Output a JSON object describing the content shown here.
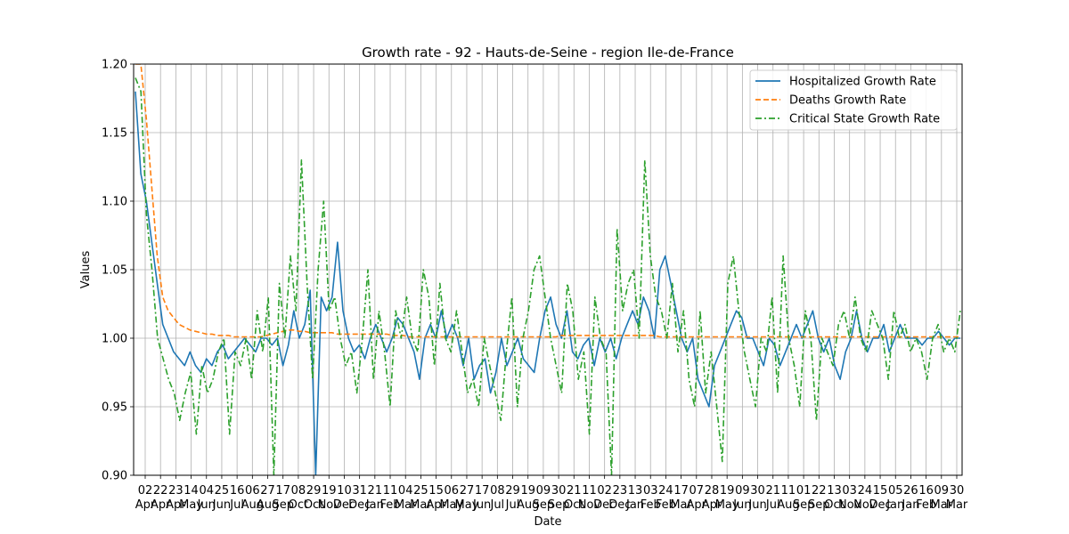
{
  "chart_data": {
    "type": "line",
    "title": "Growth rate - 92 - Hauts-de-Seine - region Ile-de-France",
    "xlabel": "Date",
    "ylabel": "Values",
    "ylim": [
      0.9,
      1.2
    ],
    "yticks": [
      "0.90",
      "0.95",
      "1.00",
      "1.05",
      "1.10",
      "1.15",
      "1.20"
    ],
    "x_tick_labels": [
      {
        "day": "02",
        "month": "Apr"
      },
      {
        "day": "22",
        "month": "Apr"
      },
      {
        "day": "23",
        "month": "Apr"
      },
      {
        "day": "14",
        "month": "May"
      },
      {
        "day": "04",
        "month": "Jun"
      },
      {
        "day": "25",
        "month": "Jun"
      },
      {
        "day": "16",
        "month": "Jul"
      },
      {
        "day": "06",
        "month": "Aug"
      },
      {
        "day": "27",
        "month": "Aug"
      },
      {
        "day": "17",
        "month": "Sep"
      },
      {
        "day": "08",
        "month": "Oct"
      },
      {
        "day": "29",
        "month": "Oct"
      },
      {
        "day": "19",
        "month": "Nov"
      },
      {
        "day": "10",
        "month": "Dec"
      },
      {
        "day": "31",
        "month": "Dec"
      },
      {
        "day": "21",
        "month": "Jan"
      },
      {
        "day": "11",
        "month": "Feb"
      },
      {
        "day": "04",
        "month": "Mar"
      },
      {
        "day": "25",
        "month": "Mar"
      },
      {
        "day": "15",
        "month": "Apr"
      },
      {
        "day": "06",
        "month": "May"
      },
      {
        "day": "27",
        "month": "May"
      },
      {
        "day": "17",
        "month": "Jun"
      },
      {
        "day": "08",
        "month": "Jul"
      },
      {
        "day": "29",
        "month": "Jul"
      },
      {
        "day": "19",
        "month": "Aug"
      },
      {
        "day": "09",
        "month": "Sep"
      },
      {
        "day": "30",
        "month": "Sep"
      },
      {
        "day": "21",
        "month": "Oct"
      },
      {
        "day": "11",
        "month": "Nov"
      },
      {
        "day": "02",
        "month": "Dec"
      },
      {
        "day": "23",
        "month": "Dec"
      },
      {
        "day": "13",
        "month": "Jan"
      },
      {
        "day": "03",
        "month": "Feb"
      },
      {
        "day": "24",
        "month": "Feb"
      },
      {
        "day": "17",
        "month": "Mar"
      },
      {
        "day": "07",
        "month": "Apr"
      },
      {
        "day": "28",
        "month": "Apr"
      },
      {
        "day": "19",
        "month": "May"
      },
      {
        "day": "09",
        "month": "Jun"
      },
      {
        "day": "30",
        "month": "Jun"
      },
      {
        "day": "21",
        "month": "Jul"
      },
      {
        "day": "11",
        "month": "Aug"
      },
      {
        "day": "01",
        "month": "Sep"
      },
      {
        "day": "22",
        "month": "Sep"
      },
      {
        "day": "13",
        "month": "Oct"
      },
      {
        "day": "03",
        "month": "Nov"
      },
      {
        "day": "24",
        "month": "Nov"
      },
      {
        "day": "15",
        "month": "Dec"
      },
      {
        "day": "05",
        "month": "Jan"
      },
      {
        "day": "26",
        "month": "Jan"
      },
      {
        "day": "16",
        "month": "Feb"
      },
      {
        "day": "09",
        "month": "Mar"
      },
      {
        "day": "30",
        "month": "Mar"
      }
    ],
    "grid": true,
    "legend_position": "top-right",
    "series": [
      {
        "name": "Hospitalized Growth Rate",
        "color": "#1f77b4",
        "style": "solid",
        "values": [
          1.18,
          1.12,
          1.1,
          1.07,
          1.04,
          1.01,
          1.0,
          0.99,
          0.985,
          0.98,
          0.99,
          0.98,
          0.975,
          0.985,
          0.98,
          0.99,
          0.995,
          0.985,
          0.99,
          0.995,
          1.0,
          0.995,
          0.99,
          1.0,
          1.0,
          0.995,
          1.0,
          0.98,
          0.995,
          1.02,
          1.0,
          1.01,
          1.035,
          0.9,
          1.03,
          1.02,
          1.03,
          1.07,
          1.02,
          1.0,
          0.99,
          0.995,
          0.985,
          1.0,
          1.01,
          1.0,
          0.99,
          1.0,
          1.015,
          1.01,
          1.0,
          0.99,
          0.97,
          1.0,
          1.01,
          1.0,
          1.02,
          1.0,
          1.01,
          1.0,
          0.98,
          1.0,
          0.97,
          0.98,
          0.985,
          0.96,
          0.975,
          1.0,
          0.98,
          0.99,
          1.0,
          0.985,
          0.98,
          0.975,
          1.0,
          1.02,
          1.03,
          1.01,
          1.0,
          1.02,
          0.99,
          0.985,
          0.995,
          1.0,
          0.98,
          1.0,
          0.99,
          1.0,
          0.985,
          1.0,
          1.01,
          1.02,
          1.01,
          1.03,
          1.02,
          1.0,
          1.05,
          1.06,
          1.04,
          1.02,
          1.0,
          0.99,
          1.0,
          0.97,
          0.96,
          0.95,
          0.98,
          0.99,
          1.0,
          1.01,
          1.02,
          1.015,
          1.0,
          1.0,
          0.99,
          0.98,
          1.0,
          0.995,
          0.98,
          0.99,
          1.0,
          1.01,
          1.0,
          1.01,
          1.02,
          1.0,
          0.99,
          1.0,
          0.98,
          0.97,
          0.99,
          1.0,
          1.02,
          1.0,
          0.99,
          1.0,
          1.0,
          1.01,
          0.99,
          1.0,
          1.01,
          1.0,
          1.0,
          1.0,
          0.995,
          1.0,
          1.0,
          1.005,
          1.0,
          0.995,
          1.0,
          1.0
        ]
      },
      {
        "name": "Deaths Growth Rate",
        "color": "#ff7f0e",
        "style": "dashed",
        "values": [
          1.2,
          1.2,
          1.16,
          1.11,
          1.06,
          1.03,
          1.02,
          1.015,
          1.01,
          1.008,
          1.006,
          1.005,
          1.004,
          1.003,
          1.003,
          1.002,
          1.002,
          1.002,
          1.001,
          1.001,
          1.001,
          1.001,
          1.001,
          1.001,
          1.002,
          1.003,
          1.004,
          1.005,
          1.006,
          1.006,
          1.005,
          1.005,
          1.004,
          1.004,
          1.004,
          1.004,
          1.004,
          1.003,
          1.003,
          1.003,
          1.003,
          1.003,
          1.003,
          1.003,
          1.003,
          1.003,
          1.003,
          1.002,
          1.002,
          1.002,
          1.001,
          1.001,
          1.001,
          1.001,
          1.001,
          1.001,
          1.001,
          1.001,
          1.001,
          1.001,
          1.001,
          1.001,
          1.001,
          1.001,
          1.001,
          1.001,
          1.001,
          1.001,
          1.001,
          1.001,
          1.001,
          1.001,
          1.001,
          1.001,
          1.001,
          1.001,
          1.001,
          1.001,
          1.002,
          1.002,
          1.002,
          1.002,
          1.002,
          1.002,
          1.002,
          1.002,
          1.002,
          1.002,
          1.002,
          1.002,
          1.002,
          1.002,
          1.002,
          1.002,
          1.002,
          1.002,
          1.001,
          1.001,
          1.001,
          1.001,
          1.001,
          1.001,
          1.001,
          1.001,
          1.001,
          1.001,
          1.001,
          1.001,
          1.001,
          1.001,
          1.001,
          1.001,
          1.001,
          1.001,
          1.001,
          1.001,
          1.001,
          1.001,
          1.001,
          1.001,
          1.001,
          1.001,
          1.001,
          1.001,
          1.001,
          1.001,
          1.001,
          1.001,
          1.001,
          1.001,
          1.001,
          1.001,
          1.001,
          1.001,
          1.001,
          1.001,
          1.001,
          1.001,
          1.001,
          1.001,
          1.001,
          1.001,
          1.001,
          1.001,
          1.001,
          1.001,
          1.001,
          1.001,
          1.001,
          1.001,
          1.001,
          1.001
        ]
      },
      {
        "name": "Critical State Growth Rate",
        "color": "#2ca02c",
        "style": "dashdot",
        "values": [
          1.19,
          1.18,
          1.09,
          1.05,
          1.0,
          0.985,
          0.97,
          0.96,
          0.94,
          0.96,
          0.975,
          0.93,
          0.98,
          0.96,
          0.97,
          0.99,
          1.0,
          0.93,
          0.99,
          0.98,
          1.0,
          0.97,
          1.02,
          0.99,
          1.03,
          0.9,
          1.04,
          1.0,
          1.06,
          1.02,
          1.13,
          1.04,
          0.97,
          1.05,
          1.1,
          1.02,
          1.03,
          1.0,
          0.98,
          0.99,
          0.96,
          1.0,
          1.05,
          0.97,
          1.02,
          0.99,
          0.95,
          1.02,
          1.0,
          1.03,
          1.0,
          0.99,
          1.05,
          1.03,
          0.98,
          1.04,
          1.0,
          0.99,
          1.02,
          0.99,
          0.96,
          0.97,
          0.95,
          1.0,
          0.98,
          0.96,
          0.94,
          0.99,
          1.03,
          0.95,
          1.0,
          1.02,
          1.05,
          1.06,
          1.03,
          1.0,
          0.98,
          0.96,
          1.04,
          1.02,
          0.97,
          0.99,
          0.93,
          1.03,
          1.0,
          0.99,
          0.9,
          1.08,
          1.02,
          1.04,
          1.05,
          1.0,
          1.13,
          1.06,
          1.03,
          1.02,
          1.0,
          1.04,
          0.99,
          1.02,
          0.97,
          0.95,
          1.02,
          0.96,
          0.99,
          0.95,
          0.91,
          1.04,
          1.06,
          1.02,
          0.99,
          0.97,
          0.95,
          1.0,
          0.99,
          1.03,
          0.96,
          1.06,
          1.0,
          0.98,
          0.95,
          1.02,
          1.0,
          0.94,
          1.0,
          0.99,
          0.98,
          1.01,
          1.02,
          1.0,
          1.03,
          1.0,
          0.99,
          1.02,
          1.01,
          1.0,
          0.97,
          1.02,
          1.0,
          1.01,
          0.99,
          1.0,
          0.99,
          0.97,
          1.0,
          1.01,
          0.99,
          1.0,
          0.99,
          1.02
        ]
      }
    ]
  }
}
